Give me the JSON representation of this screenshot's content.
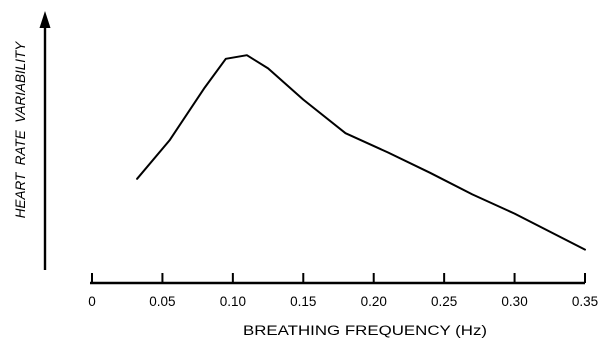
{
  "chart_data": {
    "type": "line",
    "title": "",
    "xlabel": "BREATHING FREQUENCY (Hz)",
    "ylabel": "HEART  RATE  VARIABILITY",
    "xlim": [
      0,
      0.35
    ],
    "ylim": [
      0,
      100
    ],
    "y_axis_has_ticks": false,
    "y_axis_arrow": true,
    "grid": false,
    "x_ticks": [
      0,
      0.05,
      0.1,
      0.15,
      0.2,
      0.25,
      0.3,
      0.35
    ],
    "x_tick_labels": [
      "0",
      "0.05",
      "0.10",
      "0.15",
      "0.20",
      "0.25",
      "0.30",
      "0.35"
    ],
    "series": [
      {
        "x": [
          0.032,
          0.055,
          0.08,
          0.095,
          0.11,
          0.125,
          0.15,
          0.18,
          0.21,
          0.24,
          0.27,
          0.3,
          0.35
        ],
        "y": [
          38,
          54,
          76,
          88,
          89.5,
          84,
          71,
          57,
          49,
          40.5,
          31.5,
          23.5,
          8.5
        ]
      }
    ],
    "line_color": "#000000"
  }
}
